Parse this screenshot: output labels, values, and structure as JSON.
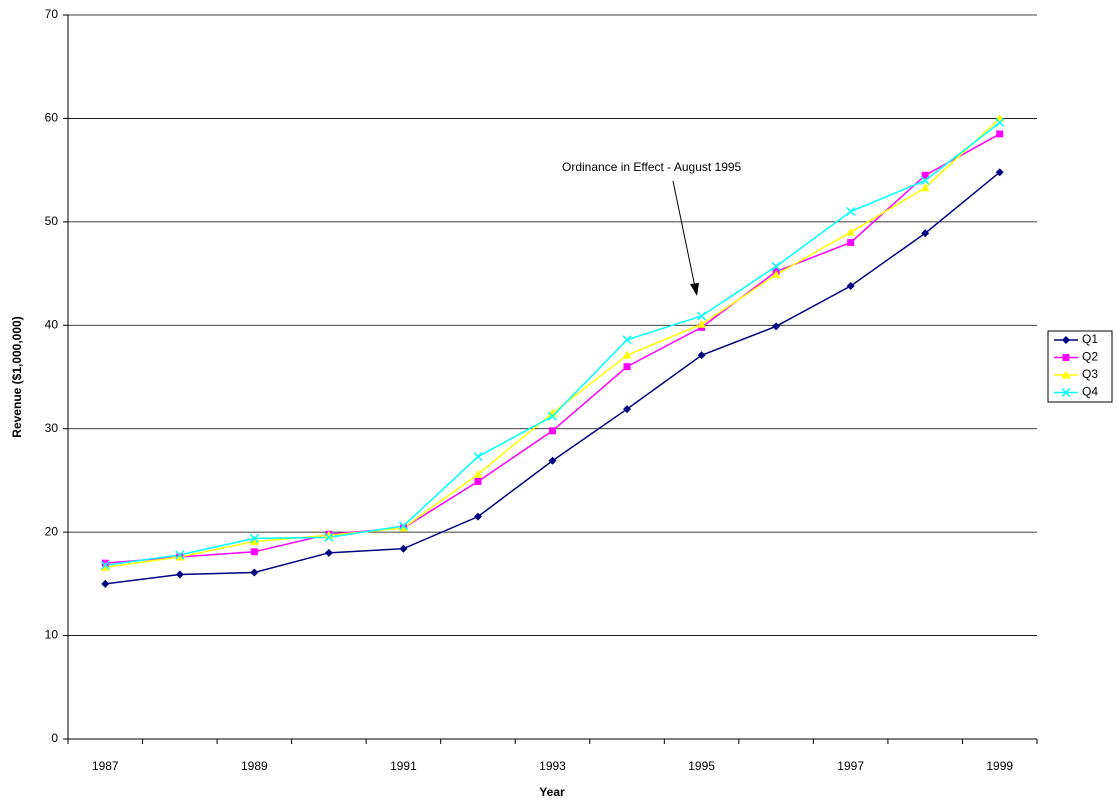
{
  "chart_data": {
    "type": "line",
    "annotation": "Ordinance in Effect - August 1995",
    "x_label": "Year",
    "y_label": "Revenue ($1,000,000)",
    "categories": [
      1987,
      null,
      1989,
      null,
      1991,
      null,
      1993,
      null,
      1995,
      null,
      1997,
      null,
      1999
    ],
    "series": [
      {
        "name": "Q1",
        "color": "#000080",
        "marker": "diamond",
        "values": [
          15.0,
          15.9,
          16.1,
          18.0,
          18.4,
          21.5,
          26.9,
          31.9,
          37.1,
          39.9,
          43.8,
          48.9,
          54.8
        ]
      },
      {
        "name": "Q2",
        "color": "#ff00ff",
        "marker": "square",
        "values": [
          17.0,
          17.6,
          18.1,
          19.8,
          20.4,
          24.9,
          29.8,
          36.0,
          39.8,
          45.2,
          48.0,
          54.5,
          58.5
        ]
      },
      {
        "name": "Q3",
        "color": "#ffff00",
        "marker": "triangle",
        "values": [
          16.6,
          17.6,
          19.1,
          19.7,
          20.4,
          25.6,
          31.5,
          37.1,
          40.1,
          44.9,
          49.0,
          53.3,
          60.0
        ]
      },
      {
        "name": "Q4",
        "color": "#00ffff",
        "marker": "x",
        "values": [
          16.8,
          17.8,
          19.4,
          19.5,
          20.6,
          27.3,
          31.2,
          38.6,
          40.9,
          45.7,
          51.0,
          54.0,
          59.6
        ]
      }
    ],
    "ylim": [
      0,
      70
    ],
    "yticks": [
      0,
      10,
      20,
      30,
      40,
      50,
      60,
      70
    ],
    "grid": true,
    "legend": "right"
  }
}
